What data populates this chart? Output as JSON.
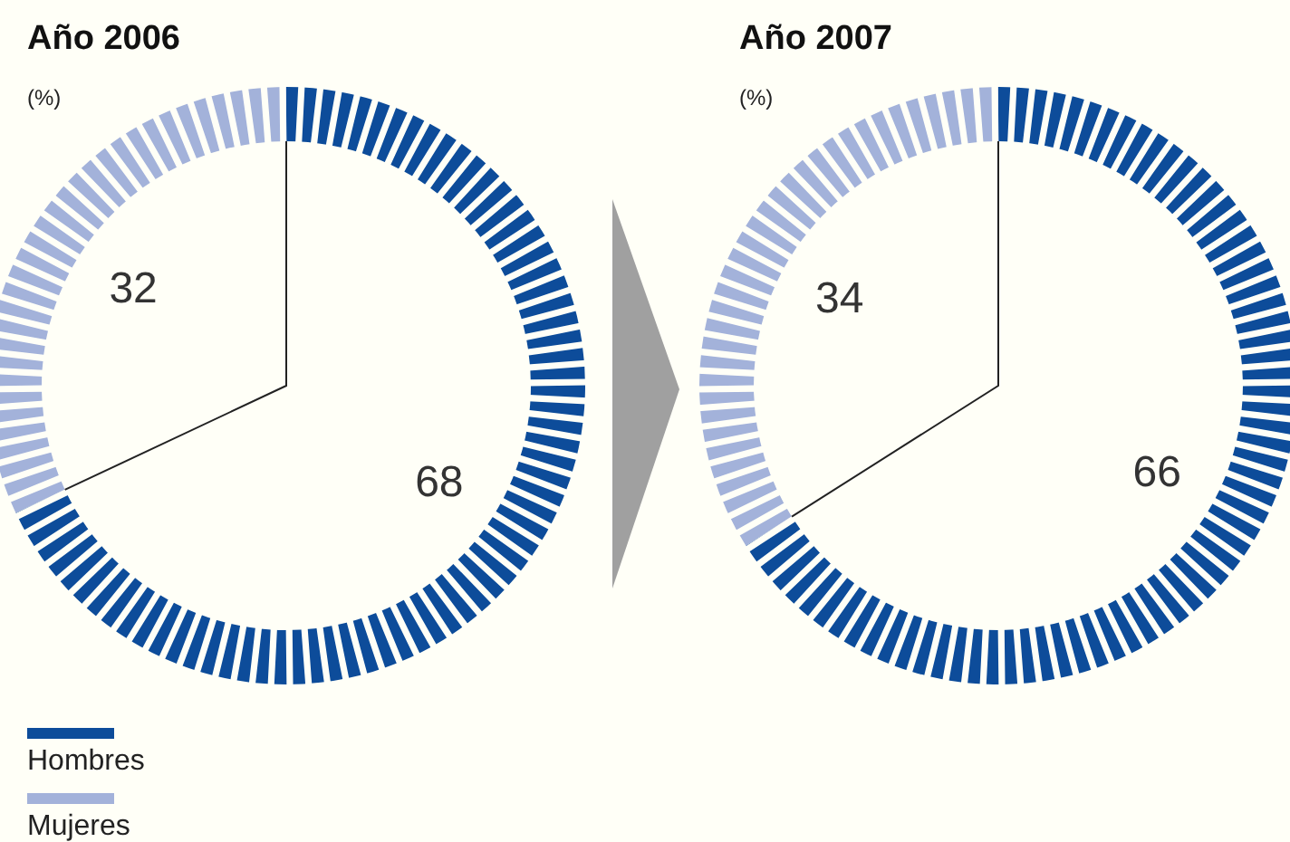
{
  "chart_data": [
    {
      "type": "donut",
      "title": "Año 2006",
      "subtitle": "(%)",
      "categories": [
        "Hombres",
        "Mujeres"
      ],
      "values": [
        68,
        32
      ],
      "colors": [
        "#0d4c9a",
        "#a3b2da"
      ],
      "data_labels": true,
      "legend": "bottom left"
    },
    {
      "type": "donut",
      "title": "Año 2007",
      "subtitle": "(%)",
      "categories": [
        null,
        null
      ],
      "values": [
        66,
        34
      ],
      "colors": [
        "#0d4c9a",
        "#a3b2da"
      ],
      "data_labels": true
    }
  ]
}
